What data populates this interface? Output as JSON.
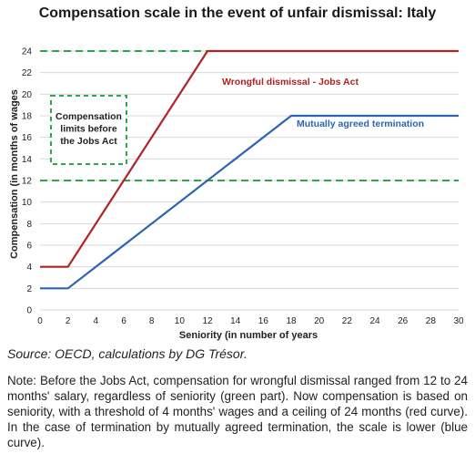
{
  "chart_data": {
    "type": "line",
    "title": "Compensation scale in the event of unfair dismissal: Italy",
    "xlabel": "Seniority (in number of years",
    "ylabel": "Compensation (in months of wages",
    "xlim": [
      0,
      30
    ],
    "ylim": [
      0,
      24
    ],
    "x_ticks": [
      0,
      2,
      4,
      6,
      8,
      10,
      12,
      14,
      16,
      18,
      20,
      22,
      24,
      26,
      28,
      30
    ],
    "y_ticks": [
      0,
      2,
      4,
      6,
      8,
      10,
      12,
      14,
      16,
      18,
      20,
      22,
      24
    ],
    "grid": true,
    "series": [
      {
        "name": "Wrongful dismissal - Jobs Act",
        "color": "#b22222",
        "x": [
          0,
          2,
          12,
          30
        ],
        "y": [
          4,
          4,
          24,
          24
        ]
      },
      {
        "name": "Mutually agreed termination",
        "color": "#2e64b4",
        "x": [
          0,
          2,
          18,
          30
        ],
        "y": [
          2,
          2,
          18,
          18
        ]
      }
    ],
    "reference_lines": [
      {
        "axis": "y",
        "value": 24,
        "color": "#2ba84a",
        "style": "dashed"
      },
      {
        "axis": "y",
        "value": 12,
        "color": "#2ba84a",
        "style": "dashed"
      }
    ],
    "annotations": [
      {
        "text": [
          "Compensation",
          "limits before",
          "the Jobs Act"
        ],
        "color": "#2ba84a",
        "style": "dashed-box"
      }
    ]
  },
  "source": "Source: OECD, calculations by DG Trésor.",
  "note": "Note: Before the Jobs Act, compensation for wrongful dismissal ranged from 12 to 24 months' salary, regardless of seniority (green part). Now compensation is based on seniority, with a threshold of 4 months' wages and a ceiling of 24 months (red curve). In the case of termination by mutually agreed termination, the scale is lower (blue curve)."
}
